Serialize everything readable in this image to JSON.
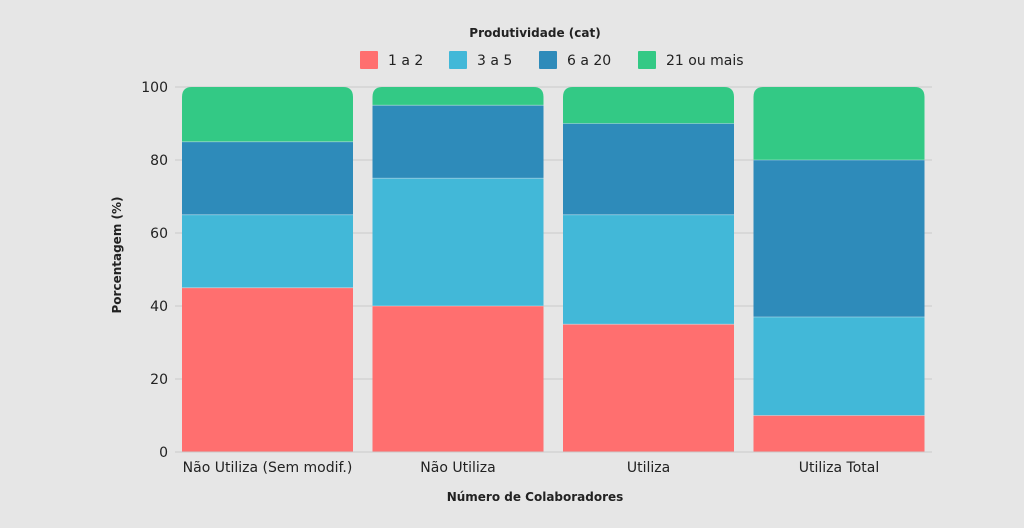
{
  "chart_data": {
    "type": "bar",
    "stacked": true,
    "title": "",
    "legend_title": "Produtividade (cat)",
    "xlabel": "Número de Colaboradores",
    "ylabel": "Porcentagem (%)",
    "ylim": [
      0,
      100
    ],
    "yticks": [
      0,
      20,
      40,
      60,
      80,
      100
    ],
    "grid": true,
    "legend_position": "top-center",
    "categories": [
      "Não Utiliza (Sem modif.)",
      "Não Utiliza",
      "Utiliza",
      "Utiliza Total"
    ],
    "series": [
      {
        "name": "1 a 2",
        "color": "#ff6f6f",
        "values": [
          45,
          40,
          35,
          10
        ]
      },
      {
        "name": "3 a 5",
        "color": "#42b8d8",
        "values": [
          20,
          35,
          30,
          27
        ]
      },
      {
        "name": "6 a 20",
        "color": "#2e8bba",
        "values": [
          20,
          20,
          25,
          43
        ]
      },
      {
        "name": "21 ou mais",
        "color": "#33c985",
        "values": [
          15,
          5,
          10,
          20
        ]
      }
    ]
  }
}
